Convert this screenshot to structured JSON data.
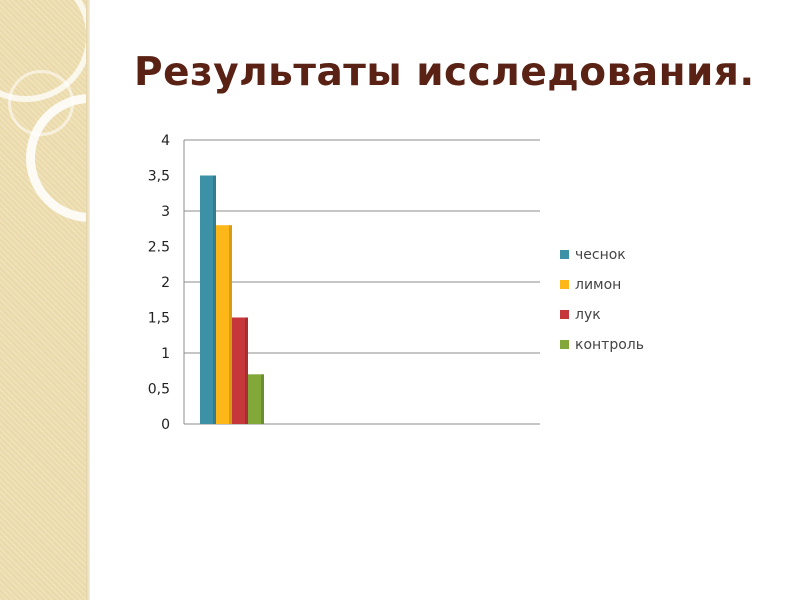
{
  "slide": {
    "title": "Результаты исследования."
  },
  "chart_data": {
    "type": "bar",
    "categories": [
      ""
    ],
    "series": [
      {
        "name": "чеснок",
        "values": [
          3.5
        ],
        "color": "#3d91a6"
      },
      {
        "name": "лимон",
        "values": [
          2.8
        ],
        "color": "#fdb718"
      },
      {
        "name": "лук",
        "values": [
          1.5
        ],
        "color": "#c5373a"
      },
      {
        "name": "контроль",
        "values": [
          0.7
        ],
        "color": "#82a83a"
      }
    ],
    "y_ticks": [
      "0",
      "0,5",
      "1",
      "1,5",
      "2",
      "2.5",
      "3",
      "3,5",
      "4"
    ],
    "ylim": [
      0,
      4
    ],
    "grid": true,
    "legend_position": "right",
    "xlabel": "",
    "ylabel": ""
  }
}
